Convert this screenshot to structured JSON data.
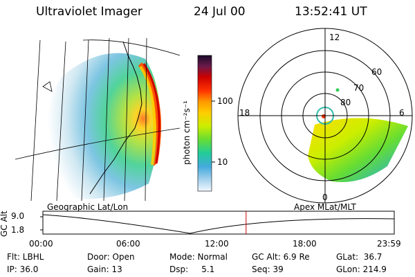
{
  "header": {
    "instrument": "Ultraviolet Imager",
    "date": "24 Jul 00",
    "time": "13:52:41 UT"
  },
  "colorbar": {
    "unit_label": "photon cm⁻²s⁻¹",
    "ticks": [
      "100",
      "10"
    ],
    "colors": [
      "#2a0a3a",
      "#6a1a4a",
      "#cc0000",
      "#ff3300",
      "#ff8800",
      "#ffcc00",
      "#ddee00",
      "#88dd22",
      "#33cc55",
      "#22ccaa",
      "#33aadd",
      "#99ccee",
      "#e0f0f8"
    ]
  },
  "left_panel": {
    "label": "Geographic Lat/Lon"
  },
  "right_panel": {
    "label": "Apex MLat/MLT",
    "mlt_labels": {
      "top": "12",
      "left": "18",
      "right": "6",
      "bottom": "0"
    },
    "lat_labels": [
      "60",
      "70",
      "80"
    ]
  },
  "timeline": {
    "y_axis_label": "GC Alt",
    "y_ticks": [
      "9.0",
      "1.8"
    ],
    "x_ticks": [
      "00:00",
      "06:00",
      "12:00",
      "18:00",
      "23:59"
    ],
    "marker_time_hours": 13.88,
    "marker_color": "#cc0000"
  },
  "info": {
    "flt": "Flt: LBHL",
    "ip": "IP: 36.0",
    "door": "Door: Open",
    "gain": "Gain: 13",
    "mode": "Mode: Normal",
    "dsp": "Dsp:     5.1",
    "gc_alt": "GC Alt: 6.9 Re",
    "seq": "Seq: 39",
    "glat": "GLat:  36.7",
    "glon": "GLon: 214.9"
  }
}
